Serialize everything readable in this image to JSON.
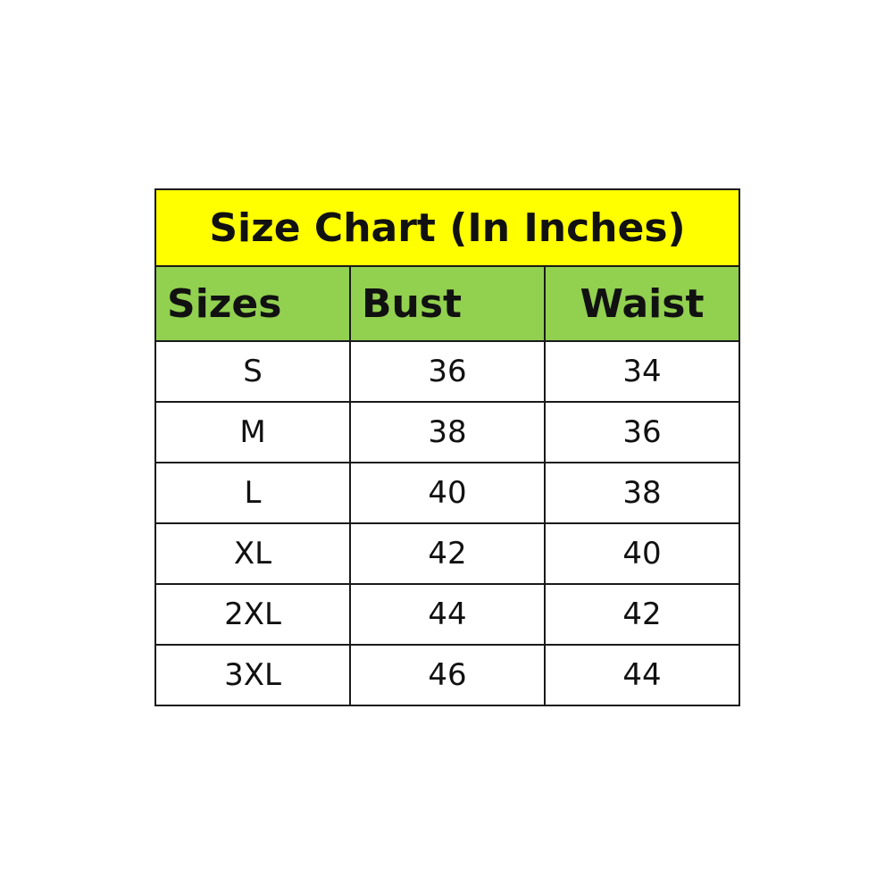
{
  "chart_data": {
    "type": "table",
    "title": "Size Chart (In Inches)",
    "columns": [
      "Sizes",
      "Bust",
      "Waist"
    ],
    "rows": [
      [
        "S",
        "36",
        "34"
      ],
      [
        "M",
        "38",
        "36"
      ],
      [
        "L",
        "40",
        "38"
      ],
      [
        "XL",
        "42",
        "40"
      ],
      [
        "2XL",
        "44",
        "42"
      ],
      [
        "3XL",
        "46",
        "44"
      ]
    ],
    "colors": {
      "title_bg": "#ffff00",
      "header_bg": "#92d050"
    }
  }
}
